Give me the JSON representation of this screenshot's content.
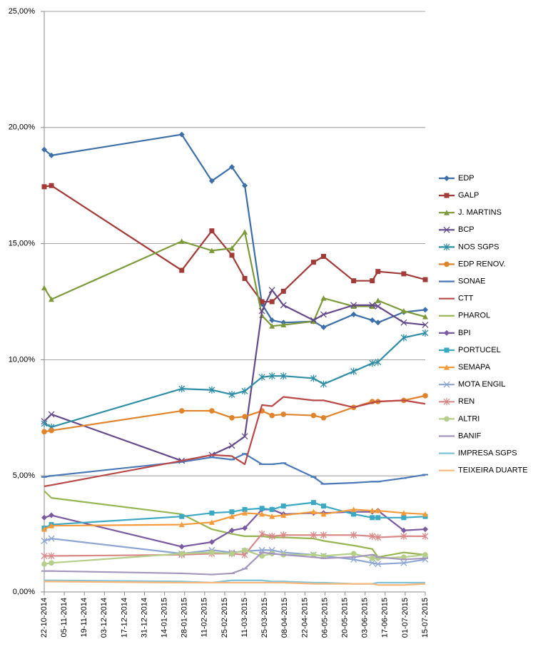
{
  "chart_data": {
    "type": "line",
    "x": [
      "22-10-2014",
      "27-10-2014",
      "26-01-2015",
      "16-02-2015",
      "02-03-2015",
      "11-03-2015",
      "23-03-2015",
      "30-03-2015",
      "07-04-2015",
      "28-04-2015",
      "05-05-2015",
      "26-05-2015",
      "08-06-2015",
      "12-06-2015",
      "30-06-2015",
      "15-07-2015"
    ],
    "xlim": [
      "22-10-2014",
      "15-07-2015"
    ],
    "xticks": [
      "22-10-2014",
      "05-11-2014",
      "19-11-2014",
      "03-12-2014",
      "17-12-2014",
      "31-12-2014",
      "14-01-2015",
      "28-01-2015",
      "11-02-2015",
      "25-02-2015",
      "11-03-2015",
      "25-03-2015",
      "08-04-2015",
      "22-04-2015",
      "06-05-2015",
      "20-05-2015",
      "03-06-2015",
      "17-06-2015",
      "01-07-2015",
      "15-07-2015"
    ],
    "ylim": [
      0,
      25
    ],
    "yticks": [
      {
        "value": 0,
        "label": "0,00%"
      },
      {
        "value": 5,
        "label": "5,00%"
      },
      {
        "value": 10,
        "label": "10,00%"
      },
      {
        "value": 15,
        "label": "15,00%"
      },
      {
        "value": 20,
        "label": "20,00%"
      },
      {
        "value": 25,
        "label": "25,00%"
      }
    ],
    "grid": true,
    "legend": "right",
    "series": [
      {
        "name": "EDP",
        "color": "#3c6ea8",
        "marker": "diamond",
        "values": [
          19.05,
          18.8,
          19.7,
          17.7,
          18.3,
          17.5,
          12.4,
          11.7,
          11.6,
          11.65,
          11.4,
          11.95,
          11.7,
          11.6,
          12.05,
          12.15
        ]
      },
      {
        "name": "GALP",
        "color": "#a23b38",
        "marker": "square",
        "values": [
          17.45,
          17.5,
          13.85,
          15.55,
          14.5,
          13.5,
          12.5,
          12.5,
          12.95,
          14.2,
          14.45,
          13.4,
          13.4,
          13.8,
          13.7,
          13.45
        ]
      },
      {
        "name": "J. MARTINS",
        "color": "#7d9a3a",
        "marker": "triangle",
        "values": [
          13.1,
          12.6,
          15.1,
          14.7,
          14.8,
          15.5,
          11.9,
          11.45,
          11.5,
          11.65,
          12.65,
          12.3,
          12.3,
          12.55,
          12.1,
          11.85
        ]
      },
      {
        "name": "BCP",
        "color": "#64498a",
        "marker": "x",
        "values": [
          7.35,
          7.65,
          5.65,
          5.9,
          6.3,
          6.7,
          12.1,
          13.0,
          12.35,
          11.7,
          11.95,
          12.35,
          12.35,
          12.3,
          11.6,
          11.5
        ]
      },
      {
        "name": "NOS SGPS",
        "color": "#2f8ea6",
        "marker": "star",
        "values": [
          7.25,
          7.1,
          8.75,
          8.7,
          8.5,
          8.65,
          9.25,
          9.3,
          9.3,
          9.2,
          8.95,
          9.5,
          9.85,
          9.9,
          10.95,
          11.15
        ]
      },
      {
        "name": "EDP RENOV.",
        "color": "#e0842c",
        "marker": "circle",
        "values": [
          6.9,
          6.95,
          7.8,
          7.8,
          7.5,
          7.55,
          7.8,
          7.6,
          7.65,
          7.6,
          7.5,
          7.95,
          8.2,
          8.2,
          8.25,
          8.45
        ]
      },
      {
        "name": "SONAE",
        "color": "#4a7ab7",
        "marker": "dash",
        "values": [
          4.95,
          5.0,
          5.6,
          5.8,
          5.7,
          5.95,
          5.5,
          5.5,
          5.55,
          4.95,
          4.65,
          4.7,
          4.75,
          4.75,
          4.9,
          5.05
        ]
      },
      {
        "name": "CTT",
        "color": "#b94846",
        "marker": "none",
        "values": [
          4.55,
          4.6,
          5.65,
          5.9,
          5.85,
          5.5,
          8.05,
          8.0,
          8.4,
          8.25,
          8.25,
          7.95,
          8.15,
          8.2,
          8.25,
          8.1
        ]
      },
      {
        "name": "PHAROL",
        "color": "#95b650",
        "marker": "none",
        "values": [
          4.35,
          4.05,
          3.35,
          2.7,
          2.5,
          2.4,
          2.4,
          2.35,
          2.35,
          2.3,
          2.2,
          2.0,
          1.85,
          1.5,
          1.7,
          1.6
        ]
      },
      {
        "name": "BPI",
        "color": "#7a5aa0",
        "marker": "diamond",
        "values": [
          3.2,
          3.3,
          1.95,
          2.15,
          2.65,
          2.75,
          3.55,
          3.55,
          3.35,
          3.4,
          3.4,
          3.45,
          3.45,
          3.5,
          2.65,
          2.7
        ]
      },
      {
        "name": "PORTUCEL",
        "color": "#3ba9c3",
        "marker": "square",
        "values": [
          2.75,
          2.9,
          3.25,
          3.4,
          3.45,
          3.55,
          3.6,
          3.55,
          3.7,
          3.85,
          3.7,
          3.35,
          3.2,
          3.2,
          3.2,
          3.25
        ]
      },
      {
        "name": "SEMAPA",
        "color": "#f49a3a",
        "marker": "triangle",
        "values": [
          2.7,
          2.85,
          2.9,
          3.0,
          3.25,
          3.4,
          3.35,
          3.25,
          3.3,
          3.45,
          3.35,
          3.55,
          3.5,
          3.5,
          3.4,
          3.35
        ]
      },
      {
        "name": "MOTA ENGIL",
        "color": "#8da6d4",
        "marker": "x",
        "values": [
          2.2,
          2.3,
          1.65,
          1.8,
          1.7,
          1.75,
          1.8,
          1.8,
          1.7,
          1.6,
          1.55,
          1.4,
          1.25,
          1.2,
          1.25,
          1.4
        ]
      },
      {
        "name": "REN",
        "color": "#d98987",
        "marker": "star",
        "values": [
          1.55,
          1.55,
          1.6,
          1.65,
          1.65,
          1.6,
          2.5,
          2.4,
          2.45,
          2.45,
          2.45,
          2.45,
          2.4,
          2.35,
          2.4,
          2.4
        ]
      },
      {
        "name": "ALTRI",
        "color": "#b5cf8a",
        "marker": "circle",
        "values": [
          1.2,
          1.25,
          1.65,
          1.7,
          1.65,
          1.8,
          1.55,
          1.65,
          1.6,
          1.6,
          1.55,
          1.65,
          1.45,
          1.45,
          1.5,
          1.6
        ]
      },
      {
        "name": "BANIF",
        "color": "#a497bd",
        "marker": "dash",
        "values": [
          0.9,
          0.9,
          0.8,
          0.75,
          0.8,
          1.0,
          1.7,
          1.65,
          1.6,
          1.5,
          1.45,
          1.5,
          1.6,
          1.5,
          1.4,
          1.45
        ]
      },
      {
        "name": "IMPRESA SGPS",
        "color": "#7ec3d6",
        "marker": "none",
        "values": [
          0.5,
          0.5,
          0.45,
          0.4,
          0.5,
          0.5,
          0.5,
          0.45,
          0.45,
          0.4,
          0.4,
          0.35,
          0.35,
          0.4,
          0.4,
          0.4
        ]
      },
      {
        "name": "TEIXEIRA DUARTE",
        "color": "#f9b87b",
        "marker": "none",
        "values": [
          0.45,
          0.45,
          0.4,
          0.4,
          0.4,
          0.4,
          0.4,
          0.4,
          0.4,
          0.35,
          0.35,
          0.35,
          0.35,
          0.3,
          0.3,
          0.35
        ]
      }
    ]
  }
}
